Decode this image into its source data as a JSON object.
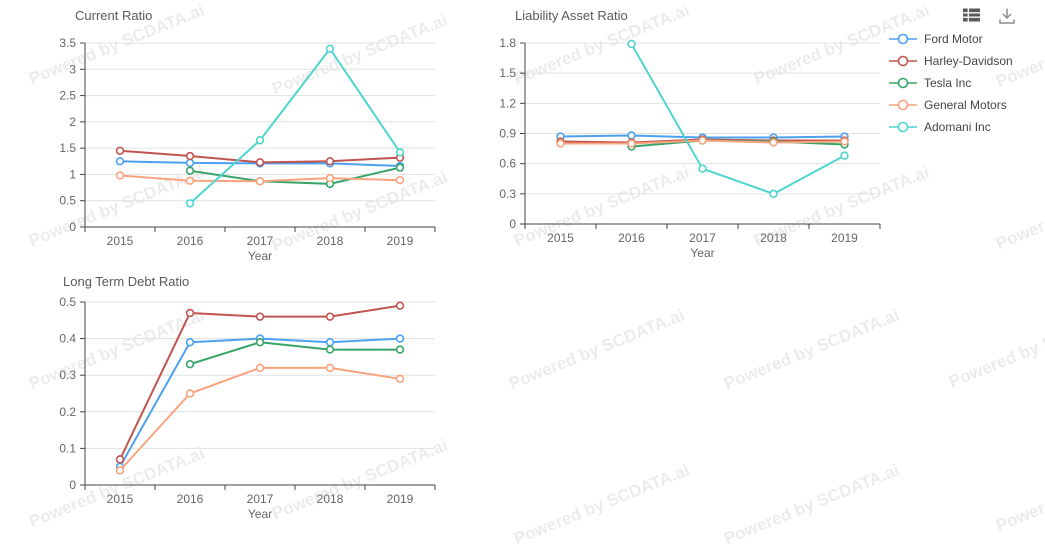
{
  "watermark": {
    "text": "Powered by SCDATA.ai"
  },
  "toolbar": {
    "icons": [
      "data-view-icon",
      "download-icon"
    ]
  },
  "legend": {
    "position": "top-right",
    "items": [
      {
        "label": "Ford Motor",
        "color": "#4ba1f0"
      },
      {
        "label": "Harley-Davidson",
        "color": "#c0544f"
      },
      {
        "label": "Tesla Inc",
        "color": "#36a567"
      },
      {
        "label": "General Motors",
        "color": "#f9a37e"
      },
      {
        "label": "Adomani Inc",
        "color": "#4ed5cd"
      }
    ]
  },
  "chart_data": [
    {
      "type": "line",
      "title": "Current Ratio",
      "xlabel": "Year",
      "ylabel": "",
      "categories": [
        "2015",
        "2016",
        "2017",
        "2018",
        "2019"
      ],
      "ylim": [
        0,
        3.5
      ],
      "yticks": [
        0,
        0.5,
        1,
        1.5,
        2,
        2.5,
        3,
        3.5
      ],
      "grid": true,
      "legend_position": "shared-right",
      "series": [
        {
          "name": "Ford Motor",
          "values": [
            1.25,
            1.22,
            1.21,
            1.21,
            1.16
          ]
        },
        {
          "name": "Harley-Davidson",
          "values": [
            1.45,
            1.35,
            1.23,
            1.25,
            1.32
          ]
        },
        {
          "name": "Tesla Inc",
          "values": [
            null,
            1.07,
            0.87,
            0.82,
            1.13
          ]
        },
        {
          "name": "General Motors",
          "values": [
            0.98,
            0.88,
            0.87,
            0.93,
            0.89
          ]
        },
        {
          "name": "Adomani Inc",
          "values": [
            null,
            0.45,
            1.65,
            3.39,
            1.42
          ]
        }
      ]
    },
    {
      "type": "line",
      "title": "Liability Asset Ratio",
      "xlabel": "Year",
      "ylabel": "",
      "categories": [
        "2015",
        "2016",
        "2017",
        "2018",
        "2019"
      ],
      "ylim": [
        0,
        1.8
      ],
      "yticks": [
        0,
        0.3,
        0.6,
        0.9,
        1.2,
        1.5,
        1.8
      ],
      "grid": true,
      "legend_position": "shared-right",
      "series": [
        {
          "name": "Ford Motor",
          "values": [
            0.87,
            0.88,
            0.86,
            0.86,
            0.87
          ]
        },
        {
          "name": "Harley-Davidson",
          "values": [
            0.82,
            0.81,
            0.84,
            0.83,
            0.83
          ]
        },
        {
          "name": "Tesla Inc",
          "values": [
            null,
            0.77,
            0.83,
            0.82,
            0.79
          ]
        },
        {
          "name": "General Motors",
          "values": [
            0.8,
            0.8,
            0.83,
            0.81,
            0.82
          ]
        },
        {
          "name": "Adomani Inc",
          "values": [
            null,
            1.79,
            0.55,
            0.3,
            0.68
          ]
        }
      ]
    },
    {
      "type": "line",
      "title": "Long Term Debt Ratio",
      "xlabel": "Year",
      "ylabel": "",
      "categories": [
        "2015",
        "2016",
        "2017",
        "2018",
        "2019"
      ],
      "ylim": [
        0,
        0.5
      ],
      "yticks": [
        0,
        0.1,
        0.2,
        0.3,
        0.4,
        0.5
      ],
      "grid": true,
      "legend_position": "shared-right",
      "series": [
        {
          "name": "Ford Motor",
          "values": [
            0.05,
            0.39,
            0.4,
            0.39,
            0.4
          ]
        },
        {
          "name": "Harley-Davidson",
          "values": [
            0.07,
            0.47,
            0.46,
            0.46,
            0.49
          ]
        },
        {
          "name": "Tesla Inc",
          "values": [
            null,
            0.33,
            0.39,
            0.37,
            0.37
          ]
        },
        {
          "name": "General Motors",
          "values": [
            0.04,
            0.25,
            0.32,
            0.32,
            0.29
          ]
        }
      ]
    }
  ]
}
